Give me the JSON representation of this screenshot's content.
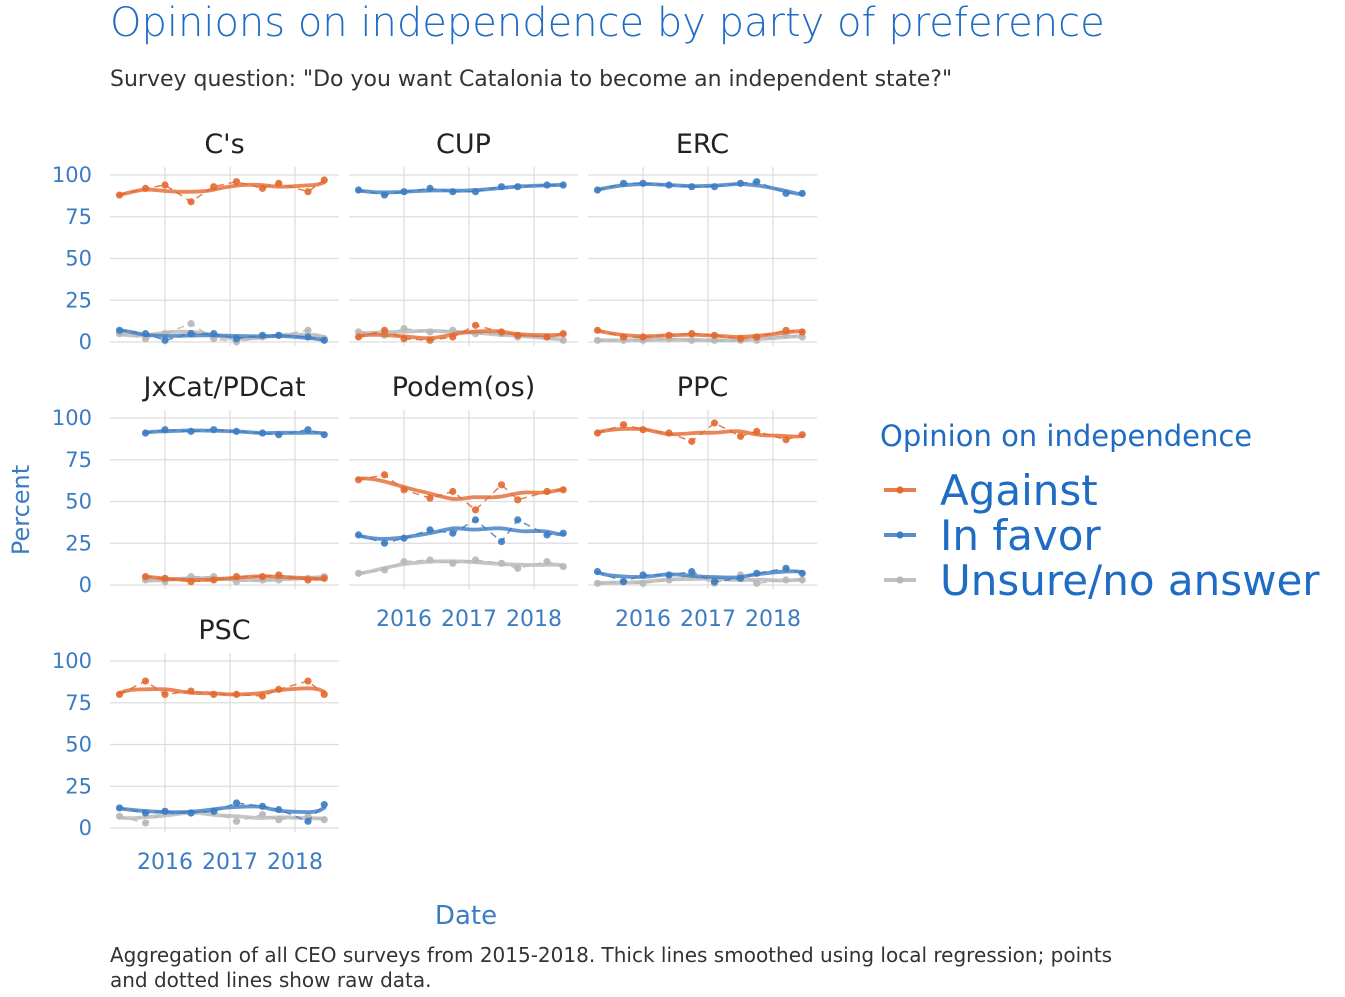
{
  "chart_data": {
    "type": "line",
    "title": "Opinions on independence by party of preference",
    "subtitle": "Survey question: \"Do you want Catalonia to become an independent state?\"",
    "xlabel": "Date",
    "ylabel": "Percent",
    "caption_lines": [
      "Aggregation of all CEO surveys from 2015-2018. Thick lines smoothed using local regression; points",
      "and dotted lines show raw data."
    ],
    "legend_title": "Opinion on independence",
    "legend_position": "right",
    "grid": true,
    "x_ticks": [
      {
        "value": 2016,
        "label": "2016"
      },
      {
        "value": 2017,
        "label": "2017"
      },
      {
        "value": 2018,
        "label": "2018"
      }
    ],
    "xlim": [
      2015.2,
      2018.6
    ],
    "y_ticks": [
      {
        "value": 0,
        "label": "0"
      },
      {
        "value": 25,
        "label": "25"
      },
      {
        "value": 50,
        "label": "50"
      },
      {
        "value": 75,
        "label": "75"
      },
      {
        "value": 100,
        "label": "100"
      }
    ],
    "ylim": [
      0,
      100
    ],
    "series_styles": [
      {
        "name": "Against",
        "color": "#E2692F"
      },
      {
        "name": "In favor",
        "color": "#3C7CC2"
      },
      {
        "name": "Unsure/no answer",
        "color": "#B7B7B7"
      }
    ],
    "facets": [
      {
        "party": "C's",
        "x": [
          2015.3,
          2015.7,
          2016.0,
          2016.4,
          2016.75,
          2017.1,
          2017.5,
          2017.75,
          2018.2,
          2018.45
        ],
        "series": [
          {
            "name": "Against",
            "values": [
              88,
              92,
              94,
              84,
              93,
              96,
              92,
              95,
              90,
              97
            ]
          },
          {
            "name": "In favor",
            "values": [
              7,
              5,
              1,
              5,
              5,
              2,
              4,
              4,
              3,
              1
            ]
          },
          {
            "name": "Unsure/no answer",
            "values": [
              5,
              2,
              5,
              11,
              2,
              0,
              3,
              4,
              7,
              2
            ]
          }
        ]
      },
      {
        "party": "CUP",
        "x": [
          2015.3,
          2015.7,
          2016.0,
          2016.4,
          2016.75,
          2017.1,
          2017.5,
          2017.75,
          2018.2,
          2018.45
        ],
        "series": [
          {
            "name": "Against",
            "values": [
              3,
              7,
              2,
              1,
              3,
              10,
              6,
              4,
              3,
              5
            ]
          },
          {
            "name": "In favor",
            "values": [
              91,
              88,
              90,
              92,
              90,
              90,
              93,
              93,
              94,
              94
            ]
          },
          {
            "name": "Unsure/no answer",
            "values": [
              6,
              4,
              8,
              6,
              7,
              5,
              5,
              3,
              3,
              1
            ]
          }
        ]
      },
      {
        "party": "ERC",
        "x": [
          2015.3,
          2015.7,
          2016.0,
          2016.4,
          2016.75,
          2017.1,
          2017.5,
          2017.75,
          2018.2,
          2018.45
        ],
        "series": [
          {
            "name": "Against",
            "values": [
              7,
              3,
              3,
              4,
              5,
              4,
              2,
              3,
              7,
              6
            ]
          },
          {
            "name": "In favor",
            "values": [
              91,
              95,
              95,
              94,
              93,
              93,
              95,
              96,
              89,
              89
            ]
          },
          {
            "name": "Unsure/no answer",
            "values": [
              1,
              1,
              1,
              2,
              1,
              1,
              1,
              1,
              4,
              3
            ]
          }
        ]
      },
      {
        "party": "JxCat/PDCat",
        "x": [
          2015.7,
          2016.0,
          2016.4,
          2016.75,
          2017.1,
          2017.5,
          2017.75,
          2018.2,
          2018.45
        ],
        "series": [
          {
            "name": "Against",
            "values": [
              5,
              4,
              2,
              3,
              5,
              5,
              6,
              3,
              4
            ]
          },
          {
            "name": "In favor",
            "values": [
              91,
              93,
              92,
              93,
              92,
              91,
              90,
              93,
              90
            ]
          },
          {
            "name": "Unsure/no answer",
            "values": [
              3,
              2,
              5,
              5,
              2,
              3,
              3,
              4,
              5
            ]
          }
        ]
      },
      {
        "party": "Podem(os)",
        "x": [
          2015.3,
          2015.7,
          2016.0,
          2016.4,
          2016.75,
          2017.1,
          2017.5,
          2017.75,
          2018.2,
          2018.45
        ],
        "series": [
          {
            "name": "Against",
            "values": [
              63,
              66,
              57,
              52,
              56,
              45,
              60,
              51,
              56,
              57
            ]
          },
          {
            "name": "In favor",
            "values": [
              30,
              25,
              28,
              33,
              31,
              39,
              26,
              39,
              30,
              31
            ]
          },
          {
            "name": "Unsure/no answer",
            "values": [
              7,
              9,
              14,
              15,
              13,
              15,
              13,
              10,
              14,
              11
            ]
          }
        ]
      },
      {
        "party": "PPC",
        "x": [
          2015.3,
          2015.7,
          2016.0,
          2016.4,
          2016.75,
          2017.1,
          2017.5,
          2017.75,
          2018.2,
          2018.45
        ],
        "series": [
          {
            "name": "Against",
            "values": [
              91,
              96,
              93,
              91,
              86,
              97,
              89,
              92,
              87,
              90
            ]
          },
          {
            "name": "In favor",
            "values": [
              8,
              2,
              6,
              6,
              8,
              2,
              4,
              7,
              10,
              7
            ]
          },
          {
            "name": "Unsure/no answer",
            "values": [
              1,
              2,
              1,
              3,
              6,
              1,
              6,
              1,
              3,
              3
            ]
          }
        ]
      },
      {
        "party": "PSC",
        "x": [
          2015.3,
          2015.7,
          2016.0,
          2016.4,
          2016.75,
          2017.1,
          2017.5,
          2017.75,
          2018.2,
          2018.45
        ],
        "series": [
          {
            "name": "Against",
            "values": [
              80,
              88,
              80,
              82,
              80,
              80,
              79,
              83,
              88,
              80
            ]
          },
          {
            "name": "In favor",
            "values": [
              12,
              9,
              10,
              9,
              10,
              15,
              13,
              11,
              4,
              14
            ]
          },
          {
            "name": "Unsure/no answer",
            "values": [
              7,
              3,
              10,
              9,
              10,
              4,
              8,
              5,
              7,
              5
            ]
          }
        ]
      }
    ]
  }
}
